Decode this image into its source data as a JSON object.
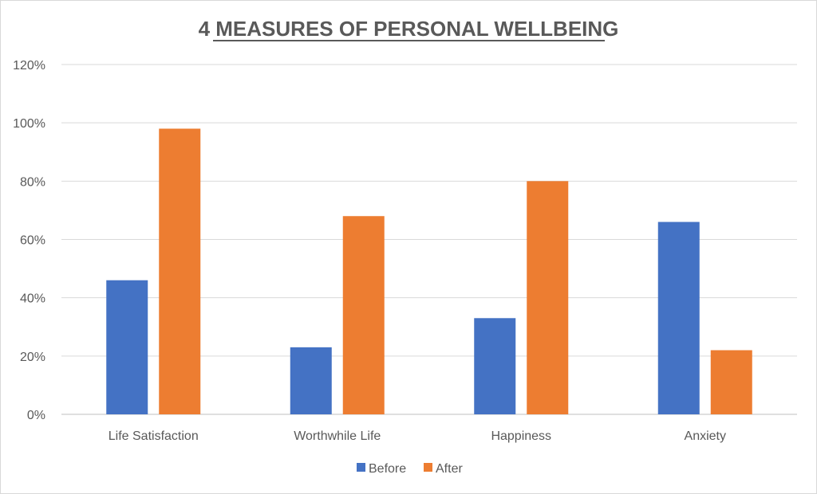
{
  "chart_data": {
    "type": "bar",
    "title": "4 MEASURES OF PERSONAL WELLBEING",
    "xlabel": "",
    "ylabel": "",
    "categories": [
      "Life Satisfaction",
      "Worthwhile Life",
      "Happiness",
      "Anxiety"
    ],
    "series": [
      {
        "name": "Before",
        "color": "#4472C4",
        "values": [
          0.46,
          0.23,
          0.33,
          0.66
        ]
      },
      {
        "name": "After",
        "color": "#ED7D31",
        "values": [
          0.98,
          0.68,
          0.8,
          0.22
        ]
      }
    ],
    "ylim": [
      0,
      1.2
    ],
    "y_ticks": [
      "0%",
      "20%",
      "40%",
      "60%",
      "80%",
      "100%",
      "120%"
    ],
    "grid": true,
    "legend_position": "bottom"
  }
}
